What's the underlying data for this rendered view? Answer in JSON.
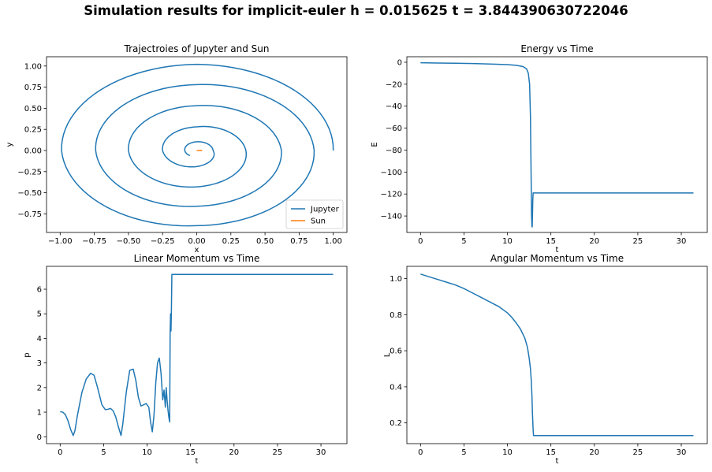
{
  "figure": {
    "suptitle": "Simulation results for implicit-euler h = 0.015625 t = 3.844390630722046"
  },
  "colors": {
    "jupyter": "#1f77b4",
    "sun": "#ff7f0e",
    "series": "#1f77b4"
  },
  "chart_data": [
    {
      "id": "trajectory",
      "type": "line",
      "title": "Trajectroies of Jupyter and Sun",
      "xlabel": "x",
      "ylabel": "y",
      "xlim": [
        -1.1,
        1.1
      ],
      "ylim": [
        -0.97,
        1.11
      ],
      "xticks": [
        -1.0,
        -0.75,
        -0.5,
        -0.25,
        0.0,
        0.25,
        0.5,
        0.75,
        1.0
      ],
      "xtick_labels": [
        "−1.00",
        "−0.75",
        "−0.50",
        "−0.25",
        "0.00",
        "0.25",
        "0.50",
        "0.75",
        "1.00"
      ],
      "yticks": [
        -0.75,
        -0.5,
        -0.25,
        0.0,
        0.25,
        0.5,
        0.75,
        1.0
      ],
      "ytick_labels": [
        "−0.75",
        "−0.50",
        "−0.25",
        "0.00",
        "0.25",
        "0.50",
        "0.75",
        "1.00"
      ],
      "legend": {
        "position": "lower-right",
        "entries": [
          "Jupyter",
          "Sun"
        ]
      },
      "spiral_crossings": {
        "east": [
          1.0,
          0.86,
          0.62,
          0.36,
          0.12
        ],
        "north": [
          1.02,
          0.78,
          0.53,
          0.28
        ],
        "west": [
          -0.99,
          -0.74,
          -0.5,
          -0.25
        ],
        "south": [
          -0.89,
          -0.66,
          -0.43,
          -0.19
        ]
      },
      "jupyter_end": [
        -0.05,
        -0.06
      ],
      "sun_segment": [
        [
          0.0,
          0.0
        ],
        [
          0.04,
          0.0
        ]
      ]
    },
    {
      "id": "energy",
      "type": "line",
      "title": "Energy vs Time",
      "xlabel": "t",
      "ylabel": "E",
      "xlim": [
        -1.57,
        32.99
      ],
      "ylim": [
        -155.0,
        5.0
      ],
      "xticks": [
        0,
        5,
        10,
        15,
        20,
        25,
        30
      ],
      "yticks": [
        -140,
        -120,
        -100,
        -80,
        -60,
        -40,
        -20,
        0
      ],
      "ytick_labels": [
        "−140",
        "−120",
        "−100",
        "−80",
        "−60",
        "−40",
        "−20",
        "0"
      ],
      "x": [
        0,
        2,
        4,
        6,
        8,
        10,
        11,
        11.8,
        12.2,
        12.4,
        12.55,
        12.65,
        12.72,
        12.78,
        12.82,
        12.85,
        12.88,
        12.92,
        12.96,
        13.0,
        15,
        20,
        25,
        31.4
      ],
      "y": [
        -0.5,
        -0.7,
        -0.9,
        -1.2,
        -1.6,
        -2.2,
        -2.8,
        -4.0,
        -6.0,
        -10.0,
        -20.0,
        -50.0,
        -100.0,
        -140.0,
        -149.0,
        -150.0,
        -140.0,
        -125.0,
        -119.0,
        -119.0,
        -119.0,
        -119.0,
        -119.0,
        -119.0
      ]
    },
    {
      "id": "linear_momentum",
      "type": "line",
      "title": "Linear Momentum vs Time",
      "xlabel": "t",
      "ylabel": "p",
      "xlim": [
        -1.57,
        32.99
      ],
      "ylim": [
        -0.28,
        6.93
      ],
      "xticks": [
        0,
        5,
        10,
        15,
        20,
        25,
        30
      ],
      "yticks": [
        0,
        1,
        2,
        3,
        4,
        5,
        6
      ],
      "x": [
        0,
        0.3,
        0.6,
        0.9,
        1.2,
        1.5,
        1.7,
        2.0,
        2.5,
        3.0,
        3.5,
        3.9,
        4.3,
        4.8,
        5.2,
        5.5,
        5.8,
        6.1,
        6.4,
        6.7,
        7.0,
        7.2,
        7.6,
        8.0,
        8.4,
        8.7,
        9.0,
        9.3,
        9.6,
        9.9,
        10.2,
        10.4,
        10.6,
        10.8,
        11.0,
        11.2,
        11.4,
        11.6,
        11.8,
        11.95,
        12.1,
        12.2,
        12.3,
        12.4,
        12.5,
        12.6,
        12.65,
        12.7,
        12.75,
        12.8,
        12.85,
        12.9,
        12.95,
        13.0,
        15,
        20,
        25,
        31.4
      ],
      "y": [
        1.02,
        1.0,
        0.9,
        0.65,
        0.3,
        0.05,
        0.25,
        0.9,
        1.8,
        2.35,
        2.58,
        2.5,
        2.0,
        1.3,
        1.1,
        1.12,
        1.15,
        1.05,
        0.8,
        0.4,
        0.05,
        0.5,
        1.8,
        2.7,
        2.75,
        2.3,
        1.6,
        1.25,
        1.3,
        1.35,
        1.2,
        0.6,
        0.2,
        0.9,
        2.2,
        3.0,
        3.2,
        2.6,
        1.5,
        1.9,
        1.2,
        2.0,
        1.5,
        1.1,
        0.8,
        0.6,
        4.2,
        5.0,
        4.3,
        5.2,
        6.6,
        6.6,
        6.6,
        6.6,
        6.6,
        6.6,
        6.6,
        6.6
      ]
    },
    {
      "id": "angular_momentum",
      "type": "line",
      "title": "Angular Momentum vs Time",
      "xlabel": "t",
      "ylabel": "L",
      "xlim": [
        -1.57,
        32.99
      ],
      "ylim": [
        0.085,
        1.068
      ],
      "xticks": [
        0,
        5,
        10,
        15,
        20,
        25,
        30
      ],
      "yticks": [
        0.2,
        0.4,
        0.6,
        0.8,
        1.0
      ],
      "ytick_labels": [
        "0.2",
        "0.4",
        "0.6",
        "0.8",
        "1.0"
      ],
      "x": [
        0,
        1,
        2,
        3,
        4,
        5,
        6,
        7,
        8,
        9,
        10,
        10.5,
        11,
        11.5,
        12,
        12.3,
        12.5,
        12.65,
        12.75,
        12.82,
        12.88,
        12.95,
        13.0,
        15,
        20,
        25,
        31.4
      ],
      "y": [
        1.025,
        1.01,
        0.995,
        0.98,
        0.965,
        0.945,
        0.92,
        0.895,
        0.87,
        0.845,
        0.81,
        0.785,
        0.755,
        0.72,
        0.67,
        0.62,
        0.56,
        0.5,
        0.43,
        0.35,
        0.25,
        0.17,
        0.13,
        0.13,
        0.13,
        0.13,
        0.13
      ]
    }
  ]
}
